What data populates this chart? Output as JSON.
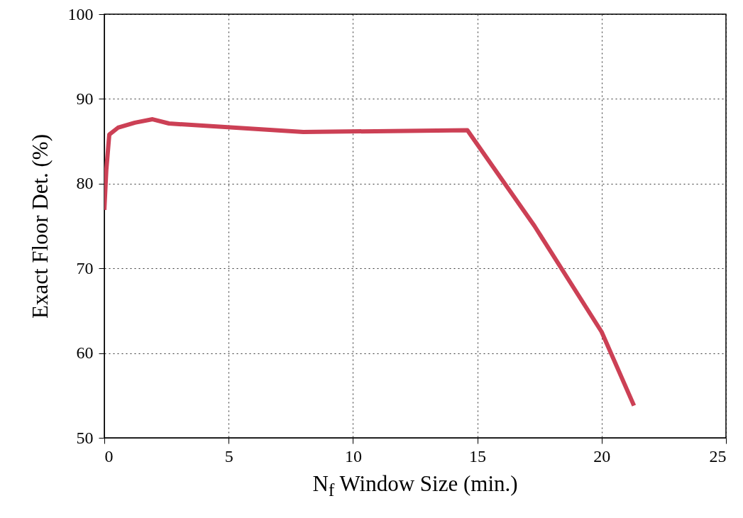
{
  "chart_data": {
    "type": "line",
    "xlabel": "N$_{f}$ Window Size (min.)",
    "ylabel": "Exact Floor Det. (%)",
    "x": [
      0,
      0.08,
      0.2,
      0.55,
      1.23,
      1.94,
      2.6,
      8.0,
      14.6,
      17.3,
      20.0,
      21.3
    ],
    "series": [
      {
        "color": "#cc4055",
        "values": [
          76.9,
          81.6,
          85.8,
          86.6,
          87.2,
          87.6,
          87.1,
          86.1,
          86.3,
          75.0,
          62.5,
          53.8
        ]
      }
    ],
    "xlim": [
      0,
      25
    ],
    "xticks": [
      0,
      5,
      10,
      15,
      20,
      25
    ],
    "ylim": [
      50,
      100
    ],
    "yticks": [
      50,
      60,
      70,
      80,
      90,
      100
    ],
    "grid": true,
    "line_style": "solid",
    "marker": "none"
  }
}
